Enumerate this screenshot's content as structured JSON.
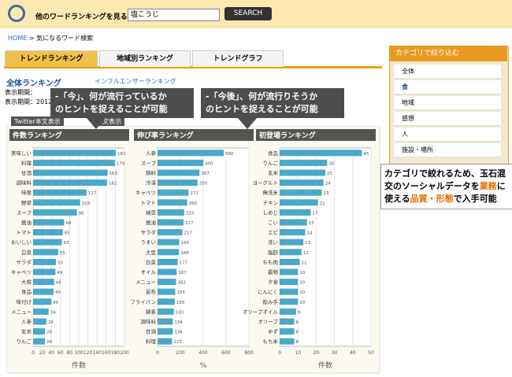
{
  "header": {
    "search_label": "他のワードランキングを見る：",
    "select_value": "塩こうじ",
    "button": "SEARCH"
  },
  "breadcrumb": {
    "home": "HOME",
    "current": "> 気になるワード検索"
  },
  "tabs": [
    "トレンドランキング",
    "地域別ランキング",
    "トレンドグラフ"
  ],
  "subtabs": [
    "全体ランキング",
    "インフルエンサーランキング"
  ],
  "period": [
    "表示期間：",
    "表示期間：2012-"
  ],
  "buttons": [
    "Twitter本文表示",
    "本文表示"
  ],
  "callouts": [
    {
      "lines": [
        "-「今」、何が流行っているか",
        "のヒントを捉えることが可能"
      ]
    },
    {
      "lines": [
        "-「今後」、何が流行りそうか",
        "のヒントを捉えることが可能"
      ]
    }
  ],
  "sidebar": {
    "title": "カテゴリで絞り込む",
    "items": [
      "全体",
      "食",
      "地域",
      "感想",
      "人",
      "施設・場所"
    ]
  },
  "note": {
    "parts": [
      {
        "text": "カテゴリで絞れるため、玉石混交のソーシャルデータを",
        "color": "#000000"
      },
      {
        "text": "業務",
        "color": "#e87000"
      },
      {
        "text": "に使える",
        "color": "#000000"
      },
      {
        "text": "品質・形態",
        "color": "#e87000"
      },
      {
        "text": "で入手可能",
        "color": "#000000"
      }
    ]
  },
  "chart_data": [
    {
      "type": "bar",
      "orientation": "horizontal",
      "title": "件数ランキング",
      "xlabel": "件数",
      "color": "#4aa8c8",
      "categories": [
        "美味しい",
        "料理",
        "甘酒",
        "調味料",
        "味噌",
        "野菜",
        "スープ",
        "醤油",
        "トマト",
        "おいしい",
        "白菜",
        "サラダ",
        "キャベツ",
        "大根",
        "食品",
        "味付け",
        "メニュー",
        "人参",
        "玄米",
        "りんご"
      ],
      "values": [
        181,
        179,
        163,
        162,
        117,
        103,
        96,
        68,
        65,
        63,
        55,
        50,
        49,
        46,
        45,
        40,
        34,
        29,
        26,
        26
      ],
      "xlim": [
        0,
        200
      ],
      "xticks": [
        0,
        20,
        40,
        60,
        80,
        100,
        120,
        140,
        160,
        180,
        200
      ]
    },
    {
      "type": "bar",
      "orientation": "horizontal",
      "title": "伸び率ランキング",
      "xlabel": "%",
      "color": "#4aa8c8",
      "categories": [
        "人参",
        "スープ",
        "鍋料",
        "冷凍",
        "キャベツ",
        "トマト",
        "納豆",
        "醤油",
        "サラダ",
        "うまい",
        "大豆",
        "白菜",
        "オイル",
        "メニュー",
        "昆布",
        "フライパン",
        "酵素",
        "調味料",
        "甘酒",
        "料理"
      ],
      "values": [
        580,
        400,
        367,
        350,
        272,
        260,
        233,
        227,
        217,
        190,
        188,
        177,
        167,
        162,
        155,
        150,
        143,
        134,
        134,
        127
      ],
      "xlim": [
        0,
        800
      ],
      "xticks": [
        0,
        200,
        400,
        600,
        800
      ]
    },
    {
      "type": "bar",
      "orientation": "horizontal",
      "title": "初登場ランキング",
      "xlabel": "件数",
      "color": "#4aa8c8",
      "categories": [
        "食品",
        "りんご",
        "玄米",
        "ヨーグルト",
        "無洗米",
        "チキン",
        "しめじ",
        "こい",
        "エビ",
        "洗い",
        "脂肪",
        "もも肉",
        "最物",
        "夕食",
        "にんにく",
        "飲み手",
        "オリーブオイル",
        "オリーブ",
        "ゆず",
        "もち米"
      ],
      "values": [
        45,
        26,
        25,
        24,
        23,
        21,
        17,
        15,
        14,
        13,
        12,
        11,
        10,
        10,
        10,
        10,
        9,
        8,
        8,
        8
      ],
      "xlim": [
        0,
        50
      ],
      "xticks": [
        0,
        10,
        20,
        30,
        40,
        50
      ]
    }
  ]
}
